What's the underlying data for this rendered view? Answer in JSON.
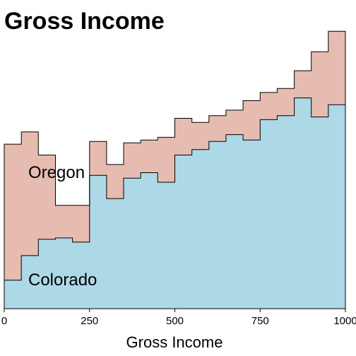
{
  "chart_data": {
    "type": "area",
    "title": "Gross Income",
    "xlabel": "Gross Income",
    "ylabel": "",
    "xlim": [
      0,
      1000
    ],
    "x_ticks": [
      0,
      250,
      500,
      750,
      1000
    ],
    "x_tick_labels": [
      "0",
      "250",
      "500",
      "750",
      "1000"
    ],
    "bin_edges": [
      0,
      50,
      100,
      150,
      200,
      250,
      300,
      350,
      400,
      450,
      500,
      550,
      600,
      650,
      700,
      750,
      800,
      850,
      900,
      950,
      1000
    ],
    "stacked": true,
    "grid": false,
    "series": [
      {
        "name": "Colorado",
        "color": "#add8e6",
        "values": [
          0.105,
          0.195,
          0.255,
          0.26,
          0.245,
          0.49,
          0.405,
          0.48,
          0.5,
          0.465,
          0.565,
          0.585,
          0.615,
          0.64,
          0.62,
          0.695,
          0.71,
          0.775,
          0.705,
          0.75
        ]
      },
      {
        "name": "Oregon",
        "color": "#e6bbb0",
        "values": [
          0.5,
          0.455,
          0.31,
          0.12,
          0.135,
          0.125,
          0.125,
          0.13,
          0.12,
          0.165,
          0.135,
          0.1,
          0.095,
          0.09,
          0.145,
          0.1,
          0.1,
          0.1,
          0.24,
          0.27
        ]
      }
    ]
  }
}
